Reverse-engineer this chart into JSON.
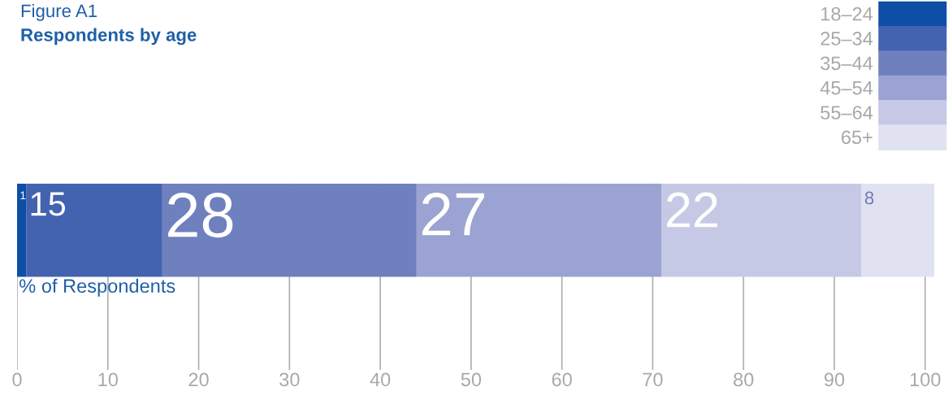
{
  "chart_data": {
    "type": "bar",
    "orientation": "horizontal",
    "stacked": true,
    "title": "Figure A1",
    "subtitle": "Respondents by age",
    "xlabel": "% of Respondents",
    "categories": [
      null
    ],
    "series": [
      {
        "name": "18–24",
        "color": "#0d4ea6",
        "values": [
          1
        ]
      },
      {
        "name": "25–34",
        "color": "#4363b0",
        "values": [
          15
        ]
      },
      {
        "name": "35–44",
        "color": "#6f80bf",
        "values": [
          28
        ]
      },
      {
        "name": "45–54",
        "color": "#9aa3d1",
        "values": [
          27
        ]
      },
      {
        "name": "55–64",
        "color": "#c6c9e5",
        "values": [
          22
        ]
      },
      {
        "name": "65+",
        "color": "#e0e2f1",
        "values": [
          8
        ]
      }
    ],
    "xlim": [
      0,
      101
    ],
    "xticks": [
      0,
      10,
      20,
      30,
      40,
      50,
      60,
      70,
      80,
      90,
      100
    ],
    "grid": "x",
    "legend": "top right",
    "data_labels": true
  }
}
